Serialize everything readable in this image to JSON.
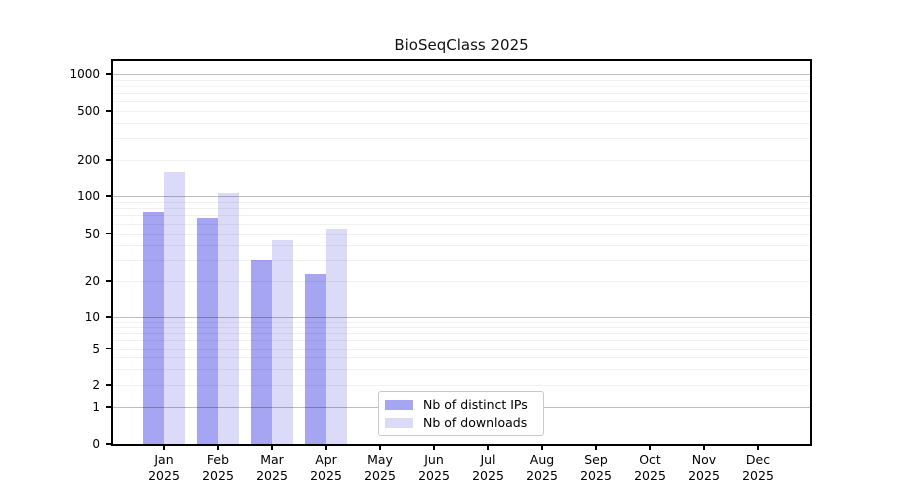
{
  "chart_data": {
    "type": "bar",
    "title": "BioSeqClass 2025",
    "categories": [
      "Jan",
      "Feb",
      "Mar",
      "Apr",
      "May",
      "Jun",
      "Jul",
      "Aug",
      "Sep",
      "Oct",
      "Nov",
      "Dec"
    ],
    "year_label": "2025",
    "series": [
      {
        "name": "Nb of distinct IPs",
        "color": "#a5a5f2",
        "values": [
          74,
          67,
          30,
          23,
          null,
          null,
          null,
          null,
          null,
          null,
          null,
          null
        ]
      },
      {
        "name": "Nb of downloads",
        "color": "#dbdbf9",
        "values": [
          160,
          106,
          44,
          54,
          null,
          null,
          null,
          null,
          null,
          null,
          null,
          null
        ]
      }
    ],
    "yticks": [
      0,
      1,
      2,
      5,
      10,
      20,
      50,
      100,
      200,
      500,
      1000
    ],
    "ylim": [
      0,
      1200
    ],
    "y_axis_scale": "log-like (asinh), zero baseline",
    "grid": "horizontal major at 1/10/100/1000, minor at 2-9 per decade",
    "legend_position": "inside bottom-center"
  },
  "colors": {
    "ips_bar": "#a5a5f2",
    "downloads_bar": "#dbdbf9",
    "major_grid": "#bdbdbd",
    "minor_grid": "#f0f0f0",
    "axis": "#000000",
    "legend_border": "#c8c8c8",
    "background": "#ffffff"
  }
}
